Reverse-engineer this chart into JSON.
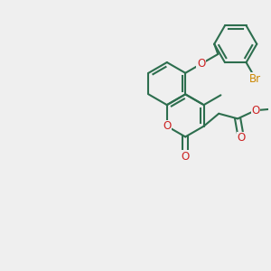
{
  "background_color": "#efefef",
  "bond_color": "#2d6e4e",
  "bond_width": 1.5,
  "atom_colors": {
    "O": "#cc2222",
    "Br": "#cc8800"
  },
  "font_size": 8.5,
  "fig_width": 3.0,
  "fig_height": 3.0,
  "bl": 0.32,
  "xlim": [
    -0.5,
    3.5
  ],
  "ylim": [
    0.0,
    3.5
  ]
}
